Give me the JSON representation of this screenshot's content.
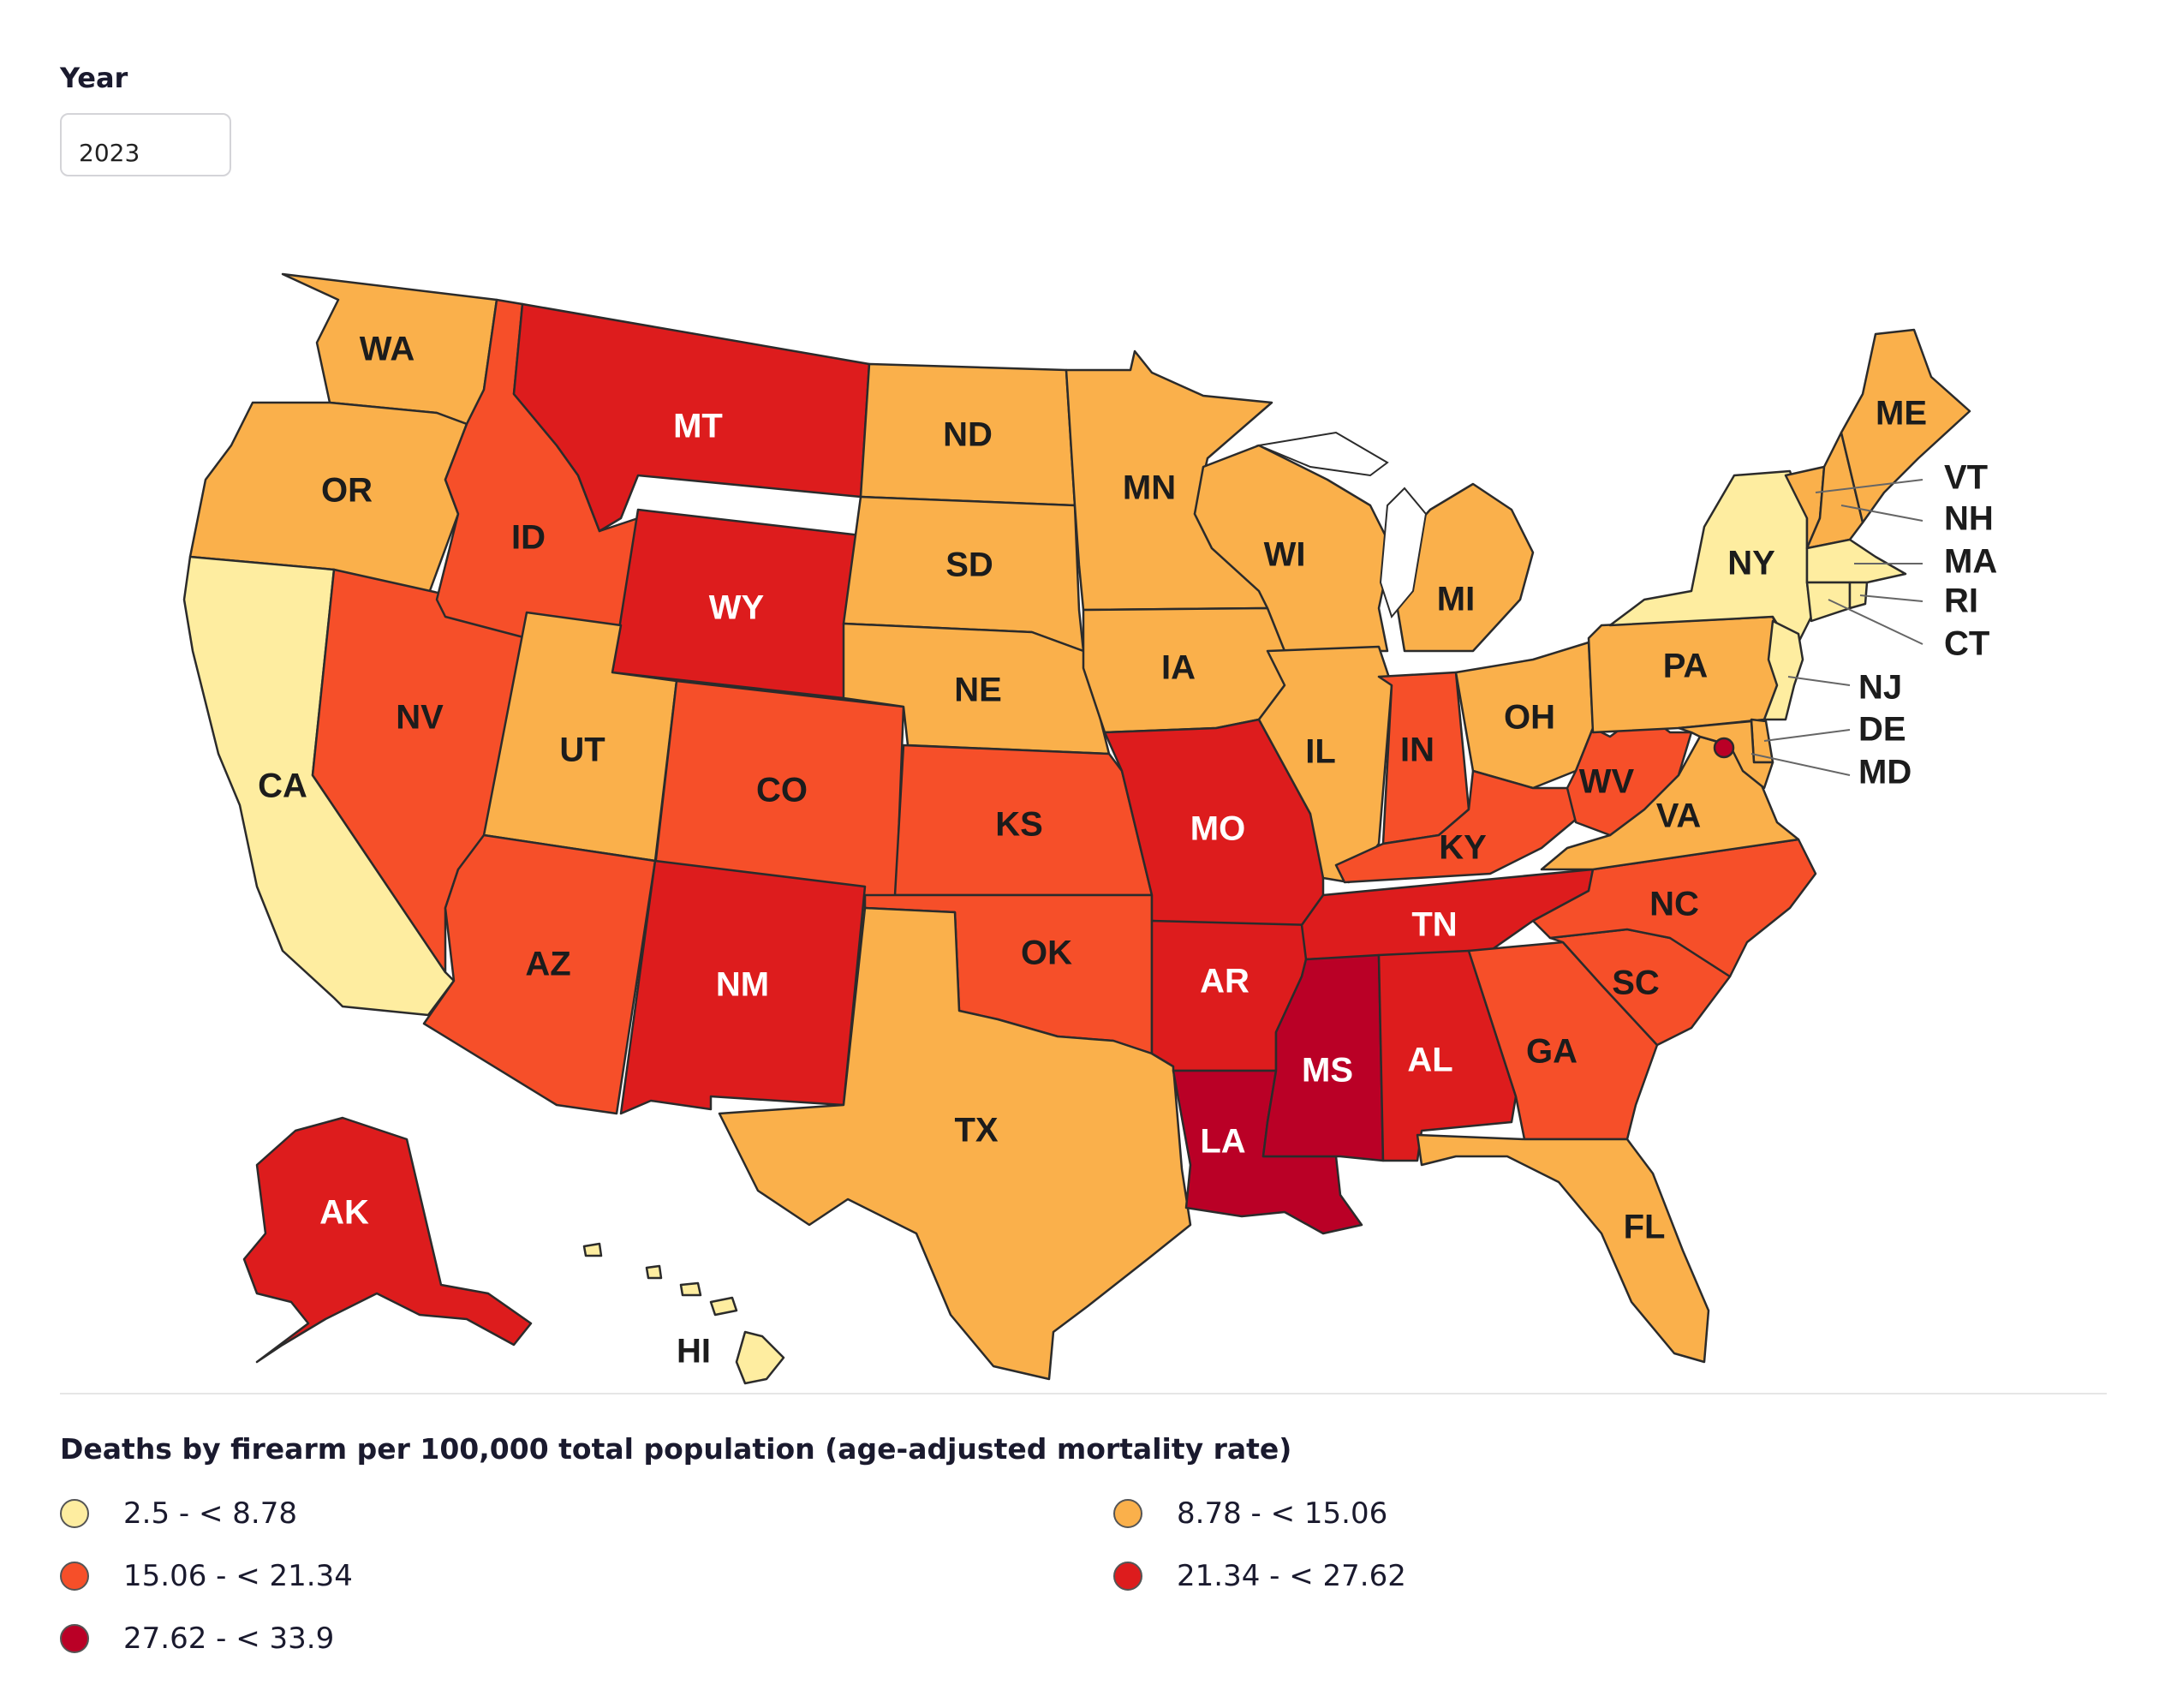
{
  "filter": {
    "label": "Year",
    "selected": "2023"
  },
  "legend": {
    "title": "Deaths by firearm per 100,000 total population (age-adjusted mortality rate)",
    "bins": [
      {
        "label": "2.5 - < 8.78",
        "color": "#FEEDA0"
      },
      {
        "label": "8.78 - < 15.06",
        "color": "#FAB04B"
      },
      {
        "label": "15.06 - < 21.34",
        "color": "#F64F29"
      },
      {
        "label": "21.34 - < 27.62",
        "color": "#DD1C1D"
      },
      {
        "label": "27.62 - < 33.9",
        "color": "#BA0026"
      }
    ]
  },
  "states": {
    "WA": {
      "bin": 1
    },
    "OR": {
      "bin": 1
    },
    "CA": {
      "bin": 0
    },
    "NV": {
      "bin": 2
    },
    "ID": {
      "bin": 2
    },
    "MT": {
      "bin": 3
    },
    "WY": {
      "bin": 3
    },
    "UT": {
      "bin": 1
    },
    "AZ": {
      "bin": 2
    },
    "CO": {
      "bin": 2
    },
    "NM": {
      "bin": 3
    },
    "ND": {
      "bin": 1
    },
    "SD": {
      "bin": 1
    },
    "NE": {
      "bin": 1
    },
    "KS": {
      "bin": 2
    },
    "OK": {
      "bin": 2
    },
    "TX": {
      "bin": 1
    },
    "MN": {
      "bin": 1
    },
    "IA": {
      "bin": 1
    },
    "MO": {
      "bin": 3
    },
    "AR": {
      "bin": 3
    },
    "LA": {
      "bin": 4
    },
    "WI": {
      "bin": 1
    },
    "IL": {
      "bin": 1
    },
    "MI": {
      "bin": 1
    },
    "IN": {
      "bin": 2
    },
    "OH": {
      "bin": 1
    },
    "KY": {
      "bin": 2
    },
    "TN": {
      "bin": 3
    },
    "MS": {
      "bin": 4
    },
    "AL": {
      "bin": 3
    },
    "GA": {
      "bin": 2
    },
    "FL": {
      "bin": 1
    },
    "SC": {
      "bin": 2
    },
    "NC": {
      "bin": 2
    },
    "VA": {
      "bin": 1
    },
    "WV": {
      "bin": 2
    },
    "PA": {
      "bin": 1
    },
    "NY": {
      "bin": 0
    },
    "VT": {
      "bin": 1
    },
    "NH": {
      "bin": 1
    },
    "ME": {
      "bin": 1
    },
    "MA": {
      "bin": 0
    },
    "RI": {
      "bin": 0
    },
    "CT": {
      "bin": 0
    },
    "NJ": {
      "bin": 0
    },
    "DE": {
      "bin": 1
    },
    "MD": {
      "bin": 1
    },
    "DC": {
      "bin": 4
    },
    "AK": {
      "bin": 3
    },
    "HI": {
      "bin": 0
    }
  },
  "labels": {
    "WA": "WA",
    "OR": "OR",
    "CA": "CA",
    "NV": "NV",
    "ID": "ID",
    "MT": "MT",
    "WY": "WY",
    "UT": "UT",
    "AZ": "AZ",
    "CO": "CO",
    "NM": "NM",
    "ND": "ND",
    "SD": "SD",
    "NE": "NE",
    "KS": "KS",
    "OK": "OK",
    "TX": "TX",
    "MN": "MN",
    "IA": "IA",
    "MO": "MO",
    "AR": "AR",
    "LA": "LA",
    "WI": "WI",
    "IL": "IL",
    "MI": "MI",
    "IN": "IN",
    "OH": "OH",
    "KY": "KY",
    "TN": "TN",
    "MS": "MS",
    "AL": "AL",
    "GA": "GA",
    "FL": "FL",
    "SC": "SC",
    "NC": "NC",
    "VA": "VA",
    "WV": "WV",
    "PA": "PA",
    "NY": "NY",
    "ME": "ME",
    "AK": "AK",
    "HI": "HI",
    "VT": "VT",
    "NH": "NH",
    "MA": "MA",
    "RI": "RI",
    "CT": "CT",
    "NJ": "NJ",
    "DE": "DE",
    "MD": "MD"
  }
}
